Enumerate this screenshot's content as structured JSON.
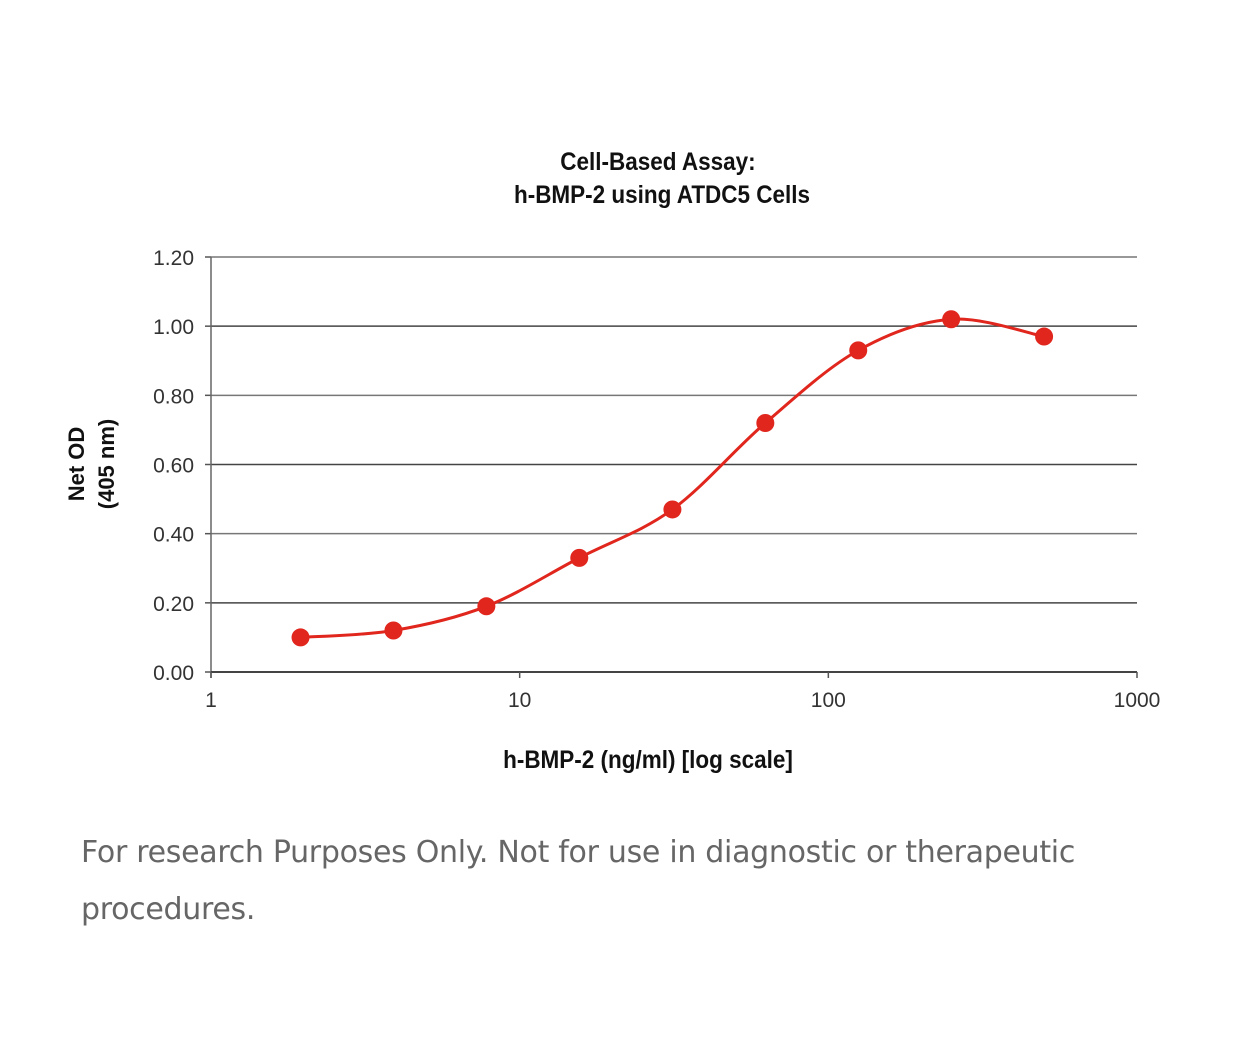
{
  "chart_data": {
    "type": "line",
    "title": [
      "Cell-Based  Assay:",
      "h-BMP-2 using ATDC5  Cells"
    ],
    "xlabel": "h-BMP-2 (ng/ml) [log scale]",
    "ylabel": [
      "Net OD",
      "(405 nm)"
    ],
    "xscale": "log",
    "xlim": [
      1,
      1000
    ],
    "ylim": [
      0,
      1.2
    ],
    "xticks": [
      "1",
      "10",
      "100",
      "1000"
    ],
    "yticks": [
      "0.00",
      "0.20",
      "0.40",
      "0.60",
      "0.80",
      "1.00",
      "1.20"
    ],
    "grid": true,
    "series": [
      {
        "name": "h-BMP-2",
        "color": "#e0261d",
        "x": [
          1.95,
          3.9,
          7.8,
          15.6,
          31.25,
          62.5,
          125,
          250,
          500
        ],
        "y": [
          0.1,
          0.12,
          0.19,
          0.33,
          0.47,
          0.72,
          0.93,
          1.02,
          0.97
        ]
      }
    ]
  },
  "footer_text": "For research Purposes Only. Not for use in diagnostic or therapeutic procedures."
}
